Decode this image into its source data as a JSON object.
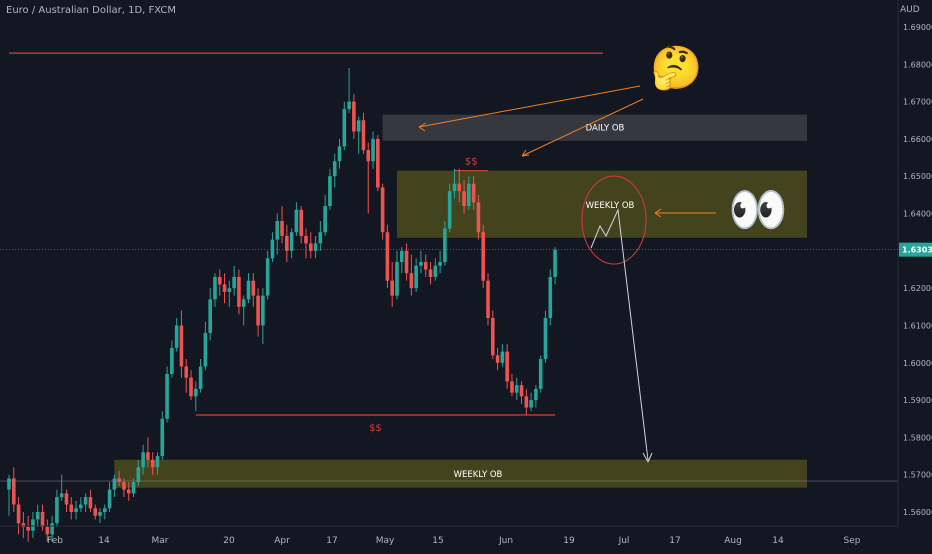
{
  "header": {
    "symbol_title": "Euro / Australian Dollar, 1D, FXCM",
    "currency": "AUD"
  },
  "colors": {
    "background": "#131722",
    "up": "#26a69a",
    "down": "#ef5350",
    "zone_yellow": "#6b6a1a",
    "zone_gray": "#3a3c43",
    "resistance": "#d93b3b",
    "annotation_orange": "#f0821e",
    "annotation_white": "#d1d4dc"
  },
  "chart_data": {
    "type": "candlestick",
    "title": "Euro / Australian Dollar, 1D, FXCM",
    "price_axis": {
      "currency": "AUD",
      "ylim": [
        1.555,
        1.695
      ],
      "ticks": [
        "1.69000",
        "1.68000",
        "1.67000",
        "1.66000",
        "1.65000",
        "1.64000",
        "1.63000",
        "1.62000",
        "1.61000",
        "1.60000",
        "1.59000",
        "1.58000",
        "1.57000",
        "1.56000"
      ]
    },
    "time_axis": {
      "ticks": [
        "Feb",
        "14",
        "Mar",
        "20",
        "Apr",
        "17",
        "May",
        "15",
        "Jun",
        "19",
        "Jul",
        "17",
        "Aug",
        "14",
        "Sep"
      ]
    },
    "last_price": "1.63032",
    "candles": [
      [
        1.566,
        1.57,
        1.559,
        1.569
      ],
      [
        1.569,
        1.572,
        1.56,
        1.562
      ],
      [
        1.562,
        1.564,
        1.554,
        1.557
      ],
      [
        1.557,
        1.56,
        1.553,
        1.556
      ],
      [
        1.556,
        1.559,
        1.552,
        1.555
      ],
      [
        1.555,
        1.56,
        1.553,
        1.558
      ],
      [
        1.558,
        1.562,
        1.556,
        1.56
      ],
      [
        1.56,
        1.562,
        1.555,
        1.556
      ],
      [
        1.556,
        1.558,
        1.552,
        1.554
      ],
      [
        1.554,
        1.559,
        1.552,
        1.557
      ],
      [
        1.557,
        1.566,
        1.556,
        1.564
      ],
      [
        1.564,
        1.57,
        1.563,
        1.565
      ],
      [
        1.565,
        1.566,
        1.56,
        1.562
      ],
      [
        1.562,
        1.564,
        1.558,
        1.56
      ],
      [
        1.56,
        1.563,
        1.558,
        1.561
      ],
      [
        1.561,
        1.564,
        1.56,
        1.562
      ],
      [
        1.562,
        1.565,
        1.56,
        1.564
      ],
      [
        1.564,
        1.566,
        1.56,
        1.561
      ],
      [
        1.561,
        1.562,
        1.558,
        1.559
      ],
      [
        1.559,
        1.561,
        1.557,
        1.56
      ],
      [
        1.56,
        1.562,
        1.558,
        1.561
      ],
      [
        1.561,
        1.568,
        1.56,
        1.566
      ],
      [
        1.566,
        1.57,
        1.564,
        1.569
      ],
      [
        1.569,
        1.571,
        1.567,
        1.568
      ],
      [
        1.568,
        1.569,
        1.564,
        1.566
      ],
      [
        1.566,
        1.568,
        1.563,
        1.565
      ],
      [
        1.565,
        1.569,
        1.564,
        1.568
      ],
      [
        1.568,
        1.574,
        1.567,
        1.572
      ],
      [
        1.572,
        1.578,
        1.57,
        1.576
      ],
      [
        1.576,
        1.58,
        1.572,
        1.574
      ],
      [
        1.574,
        1.576,
        1.57,
        1.572
      ],
      [
        1.572,
        1.576,
        1.57,
        1.575
      ],
      [
        1.575,
        1.587,
        1.574,
        1.585
      ],
      [
        1.585,
        1.599,
        1.584,
        1.597
      ],
      [
        1.597,
        1.606,
        1.596,
        1.604
      ],
      [
        1.604,
        1.612,
        1.603,
        1.61
      ],
      [
        1.61,
        1.614,
        1.596,
        1.599
      ],
      [
        1.599,
        1.601,
        1.592,
        1.596
      ],
      [
        1.596,
        1.598,
        1.59,
        1.591
      ],
      [
        1.591,
        1.595,
        1.587,
        1.593
      ],
      [
        1.593,
        1.601,
        1.592,
        1.599
      ],
      [
        1.599,
        1.611,
        1.598,
        1.608
      ],
      [
        1.608,
        1.62,
        1.606,
        1.617
      ],
      [
        1.617,
        1.624,
        1.615,
        1.623
      ],
      [
        1.623,
        1.625,
        1.618,
        1.621
      ],
      [
        1.621,
        1.624,
        1.616,
        1.619
      ],
      [
        1.619,
        1.622,
        1.615,
        1.62
      ],
      [
        1.62,
        1.626,
        1.618,
        1.623
      ],
      [
        1.623,
        1.625,
        1.613,
        1.615
      ],
      [
        1.615,
        1.618,
        1.61,
        1.617
      ],
      [
        1.617,
        1.624,
        1.616,
        1.622
      ],
      [
        1.622,
        1.624,
        1.615,
        1.618
      ],
      [
        1.618,
        1.62,
        1.607,
        1.61
      ],
      [
        1.61,
        1.62,
        1.605,
        1.618
      ],
      [
        1.618,
        1.63,
        1.617,
        1.628
      ],
      [
        1.628,
        1.635,
        1.627,
        1.633
      ],
      [
        1.633,
        1.64,
        1.629,
        1.638
      ],
      [
        1.638,
        1.642,
        1.632,
        1.634
      ],
      [
        1.634,
        1.637,
        1.627,
        1.63
      ],
      [
        1.63,
        1.636,
        1.628,
        1.635
      ],
      [
        1.635,
        1.643,
        1.634,
        1.641
      ],
      [
        1.641,
        1.642,
        1.632,
        1.634
      ],
      [
        1.634,
        1.636,
        1.628,
        1.632
      ],
      [
        1.632,
        1.635,
        1.628,
        1.63
      ],
      [
        1.63,
        1.634,
        1.628,
        1.632
      ],
      [
        1.632,
        1.638,
        1.63,
        1.635
      ],
      [
        1.635,
        1.645,
        1.634,
        1.642
      ],
      [
        1.642,
        1.652,
        1.641,
        1.65
      ],
      [
        1.65,
        1.656,
        1.647,
        1.654
      ],
      [
        1.654,
        1.66,
        1.652,
        1.658
      ],
      [
        1.658,
        1.67,
        1.657,
        1.668
      ],
      [
        1.668,
        1.679,
        1.667,
        1.67
      ],
      [
        1.67,
        1.672,
        1.66,
        1.662
      ],
      [
        1.662,
        1.666,
        1.656,
        1.665
      ],
      [
        1.665,
        1.667,
        1.656,
        1.657
      ],
      [
        1.657,
        1.659,
        1.64,
        1.654
      ],
      [
        1.654,
        1.662,
        1.652,
        1.66
      ],
      [
        1.66,
        1.661,
        1.646,
        1.647
      ],
      [
        1.647,
        1.648,
        1.633,
        1.635
      ],
      [
        1.635,
        1.637,
        1.62,
        1.622
      ],
      [
        1.622,
        1.627,
        1.615,
        1.618
      ],
      [
        1.618,
        1.63,
        1.617,
        1.627
      ],
      [
        1.627,
        1.631,
        1.624,
        1.63
      ],
      [
        1.63,
        1.632,
        1.622,
        1.624
      ],
      [
        1.624,
        1.629,
        1.618,
        1.62
      ],
      [
        1.62,
        1.628,
        1.619,
        1.626
      ],
      [
        1.626,
        1.63,
        1.624,
        1.627
      ],
      [
        1.627,
        1.629,
        1.623,
        1.625
      ],
      [
        1.625,
        1.627,
        1.621,
        1.623
      ],
      [
        1.623,
        1.628,
        1.622,
        1.626
      ],
      [
        1.626,
        1.63,
        1.624,
        1.627
      ],
      [
        1.627,
        1.638,
        1.626,
        1.636
      ],
      [
        1.636,
        1.648,
        1.635,
        1.646
      ],
      [
        1.646,
        1.652,
        1.644,
        1.648
      ],
      [
        1.648,
        1.652,
        1.643,
        1.646
      ],
      [
        1.646,
        1.649,
        1.64,
        1.642
      ],
      [
        1.642,
        1.65,
        1.641,
        1.648
      ],
      [
        1.648,
        1.65,
        1.641,
        1.643
      ],
      [
        1.643,
        1.645,
        1.633,
        1.635
      ],
      [
        1.635,
        1.637,
        1.62,
        1.622
      ],
      [
        1.622,
        1.624,
        1.61,
        1.612
      ],
      [
        1.612,
        1.614,
        1.601,
        1.602
      ],
      [
        1.602,
        1.604,
        1.598,
        1.6
      ],
      [
        1.6,
        1.605,
        1.599,
        1.603
      ],
      [
        1.603,
        1.605,
        1.593,
        1.595
      ],
      [
        1.595,
        1.597,
        1.591,
        1.592
      ],
      [
        1.592,
        1.596,
        1.59,
        1.594
      ],
      [
        1.594,
        1.595,
        1.589,
        1.591
      ],
      [
        1.591,
        1.593,
        1.586,
        1.588
      ],
      [
        1.588,
        1.592,
        1.587,
        1.59
      ],
      [
        1.59,
        1.594,
        1.588,
        1.593
      ],
      [
        1.593,
        1.602,
        1.592,
        1.601
      ],
      [
        1.601,
        1.614,
        1.6,
        1.612
      ],
      [
        1.612,
        1.625,
        1.61,
        1.623
      ],
      [
        1.623,
        1.631,
        1.621,
        1.6303
      ]
    ],
    "zones": [
      {
        "label": "DAILY OB",
        "price_top": 1.6665,
        "price_bottom": 1.6595,
        "from_bar": 78
      },
      {
        "label": "",
        "price_top": 1.6515,
        "price_bottom": 1.6335,
        "from_bar": 81
      },
      {
        "label": "WEEKLY OB",
        "price_top": 1.574,
        "price_bottom": 1.5665,
        "from_bar": 22
      }
    ],
    "levels": [
      {
        "label": "",
        "price": 1.683,
        "from_bar": 0,
        "to_bar": 124
      },
      {
        "label": "$$",
        "price": 1.586,
        "from_bar": 39,
        "to_bar": 114
      },
      {
        "label": "$$",
        "price": 1.6515,
        "from_bar": 93,
        "to_bar": 100
      }
    ],
    "annotations": {
      "circle_label": "WEEKLY OB",
      "thinking_emoji": "🤔",
      "eyes_emoji": "👀"
    },
    "grid": false
  }
}
